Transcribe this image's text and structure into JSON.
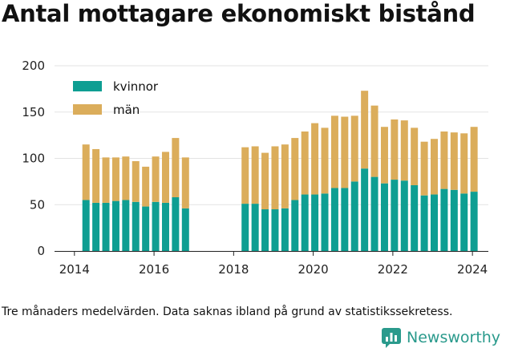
{
  "title": "Antal mottagare ekonomiskt bistånd",
  "caption": "Tre månaders medelvärden. Data saknas ibland på grund av statistikssekretess.",
  "brand": {
    "name": "Newsworthy",
    "icon": "newsworthy-logo-icon",
    "color": "#2a9a8c"
  },
  "chart_data": {
    "type": "bar",
    "stacked": true,
    "title": "Antal mottagare ekonomiskt bistånd",
    "xlabel": "",
    "ylabel": "",
    "ylim": [
      0,
      200
    ],
    "xlim": [
      2013.5,
      2024.4
    ],
    "yticks": [
      0,
      50,
      100,
      150,
      200
    ],
    "xticks": [
      2014,
      2016,
      2018,
      2020,
      2022,
      2024
    ],
    "grid": "horizontal",
    "legend_position": "top-left",
    "x": [
      2014.29,
      2014.54,
      2014.79,
      2015.04,
      2015.29,
      2015.54,
      2015.79,
      2016.04,
      2016.29,
      2016.54,
      2016.79,
      2018.29,
      2018.54,
      2018.79,
      2019.04,
      2019.29,
      2019.54,
      2019.79,
      2020.04,
      2020.29,
      2020.54,
      2020.79,
      2021.04,
      2021.29,
      2021.54,
      2021.79,
      2022.04,
      2022.29,
      2022.54,
      2022.79,
      2023.04,
      2023.29,
      2023.54,
      2023.79,
      2024.04
    ],
    "series": [
      {
        "name": "kvinnor",
        "color": "#0e9e92",
        "values": [
          55,
          52,
          52,
          54,
          55,
          53,
          48,
          53,
          52,
          58,
          46,
          51,
          51,
          45,
          45,
          46,
          55,
          61,
          61,
          62,
          68,
          68,
          75,
          89,
          80,
          73,
          77,
          76,
          71,
          60,
          61,
          67,
          66,
          62,
          64
        ]
      },
      {
        "name": "män",
        "color": "#dbad5b",
        "values": [
          60,
          58,
          49,
          47,
          47,
          44,
          43,
          49,
          55,
          64,
          55,
          61,
          62,
          61,
          68,
          69,
          67,
          68,
          77,
          71,
          78,
          77,
          71,
          84,
          77,
          61,
          65,
          65,
          62,
          58,
          60,
          62,
          62,
          65,
          70
        ]
      }
    ]
  }
}
